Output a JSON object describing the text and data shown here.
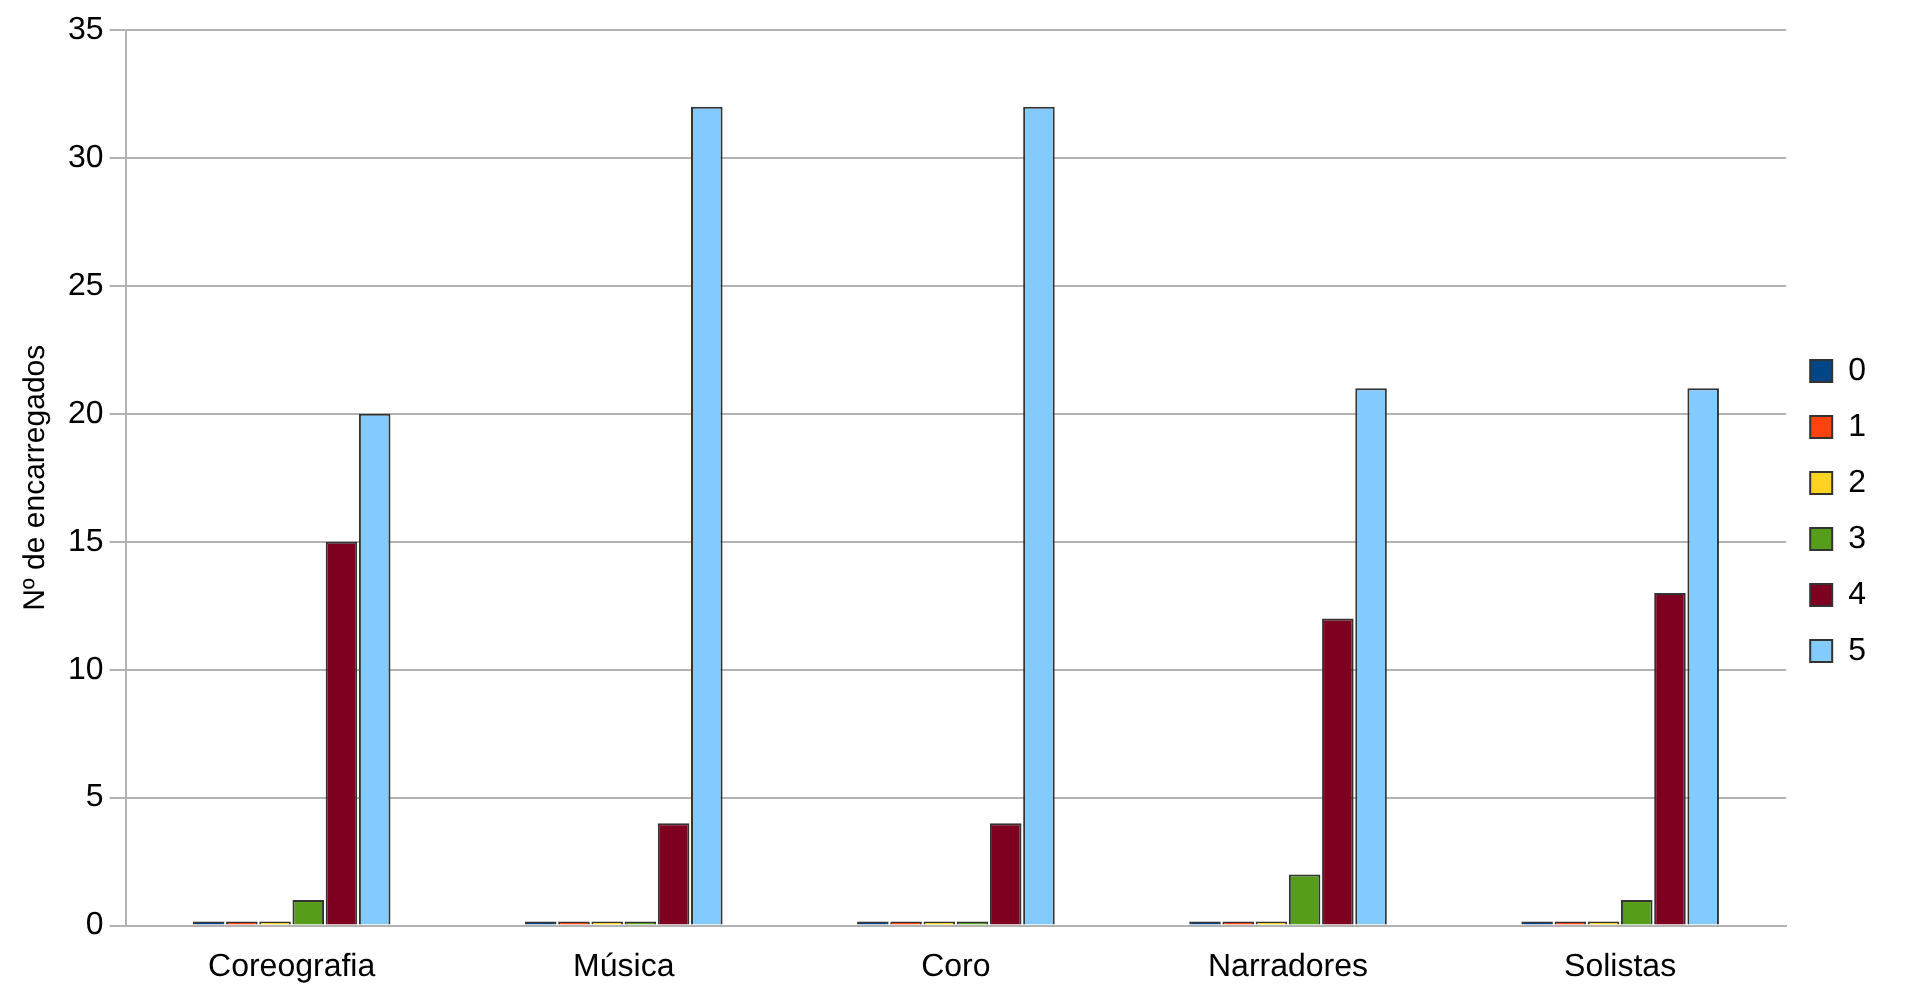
{
  "chart_data": {
    "type": "bar",
    "ylabel": "Nº de encarregados",
    "categories": [
      "Coreografia",
      "Música",
      "Coro",
      "Narradores",
      "Solistas"
    ],
    "series": [
      {
        "name": "0",
        "color": "#004586",
        "values": [
          0,
          0,
          0,
          0,
          0
        ]
      },
      {
        "name": "1",
        "color": "#ff420e",
        "values": [
          0,
          0,
          0,
          0,
          0
        ]
      },
      {
        "name": "2",
        "color": "#ffd320",
        "values": [
          0,
          0,
          0,
          0,
          0
        ]
      },
      {
        "name": "3",
        "color": "#579d1c",
        "values": [
          1,
          0,
          0,
          2,
          1
        ]
      },
      {
        "name": "4",
        "color": "#7e0021",
        "values": [
          15,
          4,
          4,
          12,
          13
        ]
      },
      {
        "name": "5",
        "color": "#83caff",
        "values": [
          20,
          32,
          32,
          21,
          21
        ]
      }
    ],
    "ylim": [
      0,
      35
    ],
    "yticks": [
      0,
      5,
      10,
      15,
      20,
      25,
      30,
      35
    ],
    "grid": "y",
    "legend": "right"
  }
}
